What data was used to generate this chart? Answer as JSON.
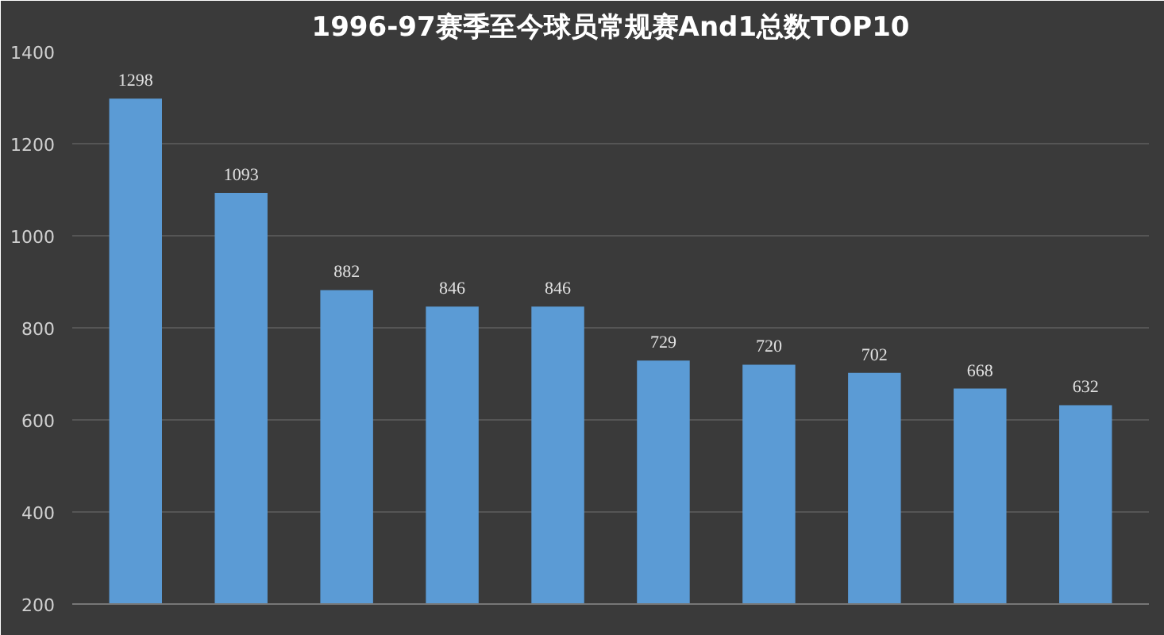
{
  "chart_data": {
    "type": "bar",
    "title": "1996-97赛季至今球员常规赛And1总数TOP10",
    "categories": [
      null,
      null,
      null,
      null,
      null,
      null,
      null,
      null,
      null,
      null
    ],
    "values": [
      1298,
      1093,
      882,
      846,
      846,
      729,
      720,
      702,
      668,
      632
    ],
    "color": "#5b9bd5",
    "data_labels": true,
    "grid": "y",
    "ylim": [
      200,
      1400
    ],
    "yticks": [
      200,
      400,
      600,
      800,
      1000,
      1200,
      1400
    ]
  }
}
